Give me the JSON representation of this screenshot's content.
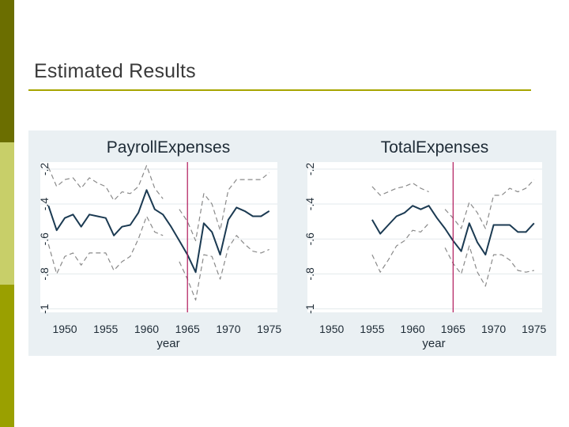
{
  "slide": {
    "title": "Estimated Results",
    "colors": {
      "side_top": "#6b6e00",
      "side_mid": "#c8cf69",
      "side_bot": "#9aa000",
      "rule": "#a7a500",
      "figure_bg": "#eaf0f3",
      "plot_bg": "#ffffff",
      "line": "#1b3a52",
      "ci": "#8a8a8a",
      "vline": "#b0185a",
      "grid": "#e3e9ec",
      "text": "#1e2b36"
    }
  },
  "chart_data": [
    {
      "type": "line",
      "title": "PayrollExpenses",
      "xlabel": "year",
      "ylabel": "",
      "xlim": [
        1947,
        1976
      ],
      "ylim": [
        -1.02,
        -0.16
      ],
      "xticks": [
        1950,
        1955,
        1960,
        1965,
        1970,
        1975
      ],
      "yticks": [
        -1,
        -0.8,
        -0.6,
        -0.4,
        -0.2
      ],
      "ytick_labels": [
        "-1",
        "-.8",
        "-.6",
        "-.4",
        "-.2"
      ],
      "grid": true,
      "vline": 1965,
      "x": [
        1948,
        1949,
        1950,
        1951,
        1952,
        1953,
        1954,
        1955,
        1956,
        1957,
        1958,
        1959,
        1960,
        1961,
        1962,
        1963,
        1964,
        1965,
        1966,
        1967,
        1968,
        1969,
        1970,
        1971,
        1972,
        1973,
        1974,
        1975
      ],
      "series": [
        {
          "name": "estimate",
          "style": "solid",
          "values": [
            -0.41,
            -0.55,
            -0.48,
            -0.46,
            -0.53,
            -0.46,
            -0.47,
            -0.48,
            -0.58,
            -0.53,
            -0.52,
            -0.45,
            -0.32,
            -0.43,
            -0.46,
            -0.53,
            -0.61,
            -0.69,
            -0.79,
            -0.51,
            -0.56,
            -0.69,
            -0.49,
            -0.42,
            -0.44,
            -0.47,
            -0.47,
            -0.44
          ]
        },
        {
          "name": "upper",
          "style": "dashed",
          "values": [
            -0.19,
            -0.3,
            -0.26,
            -0.25,
            -0.31,
            -0.25,
            -0.28,
            -0.3,
            -0.38,
            -0.33,
            -0.34,
            -0.3,
            -0.18,
            -0.31,
            -0.37,
            null,
            -0.43,
            -0.5,
            -0.61,
            -0.34,
            -0.4,
            -0.55,
            -0.32,
            -0.26,
            -0.26,
            -0.26,
            -0.26,
            -0.22
          ]
        },
        {
          "name": "lower",
          "style": "dashed",
          "values": [
            -0.63,
            -0.8,
            -0.7,
            -0.68,
            -0.75,
            -0.68,
            -0.68,
            -0.68,
            -0.78,
            -0.73,
            -0.7,
            -0.6,
            -0.47,
            -0.56,
            -0.58,
            null,
            -0.73,
            -0.83,
            -0.95,
            -0.69,
            -0.7,
            -0.83,
            -0.65,
            -0.58,
            -0.63,
            -0.67,
            -0.68,
            -0.66
          ]
        }
      ]
    },
    {
      "type": "line",
      "title": "TotalExpenses",
      "xlabel": "year",
      "ylabel": "",
      "xlim": [
        1947,
        1976
      ],
      "ylim": [
        -1.02,
        -0.16
      ],
      "xticks": [
        1950,
        1955,
        1960,
        1965,
        1970,
        1975
      ],
      "yticks": [
        -1,
        -0.8,
        -0.6,
        -0.4,
        -0.2
      ],
      "ytick_labels": [
        "-1",
        "-.8",
        "-.6",
        "-.4",
        "-.2"
      ],
      "grid": true,
      "vline": 1965,
      "x": [
        1955,
        1956,
        1957,
        1958,
        1959,
        1960,
        1961,
        1962,
        1963,
        1964,
        1965,
        1966,
        1967,
        1968,
        1969,
        1970,
        1971,
        1972,
        1973,
        1974,
        1975
      ],
      "series": [
        {
          "name": "estimate",
          "style": "solid",
          "values": [
            -0.49,
            -0.57,
            -0.52,
            -0.47,
            -0.45,
            -0.41,
            -0.43,
            -0.41,
            -0.48,
            -0.54,
            -0.61,
            -0.67,
            -0.51,
            -0.62,
            -0.69,
            -0.52,
            -0.52,
            -0.52,
            -0.56,
            -0.56,
            -0.51
          ]
        },
        {
          "name": "upper",
          "style": "dashed",
          "values": [
            -0.3,
            -0.35,
            -0.33,
            -0.31,
            -0.3,
            -0.28,
            -0.31,
            -0.33,
            null,
            -0.43,
            -0.48,
            -0.54,
            -0.39,
            -0.45,
            -0.54,
            -0.35,
            -0.35,
            -0.31,
            -0.33,
            -0.31,
            -0.26
          ]
        },
        {
          "name": "lower",
          "style": "dashed",
          "values": [
            -0.69,
            -0.79,
            -0.72,
            -0.64,
            -0.61,
            -0.55,
            -0.56,
            -0.51,
            null,
            -0.65,
            -0.74,
            -0.8,
            -0.64,
            -0.79,
            -0.87,
            -0.69,
            -0.69,
            -0.72,
            -0.78,
            -0.79,
            -0.78
          ]
        }
      ]
    }
  ]
}
